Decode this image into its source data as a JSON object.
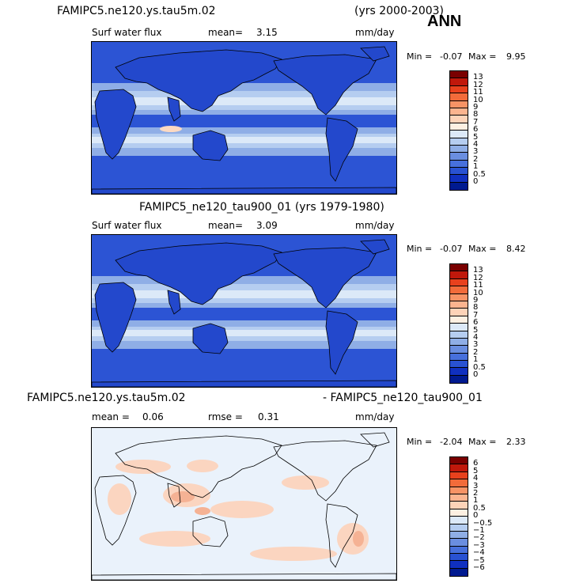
{
  "header": {
    "case1": "FAMIPC5.ne120.ys.tau5m.02",
    "years1": "(yrs 2000-2003)",
    "season": "ANN"
  },
  "panel1": {
    "var": "Surf water flux",
    "mean_label": "mean=",
    "mean": "3.15",
    "units": "mm/day",
    "min_label": "Min =",
    "min": "-0.07",
    "max_label": "Max =",
    "max": "9.95"
  },
  "panel2": {
    "title": "FAMIPC5_ne120_tau900_01 (yrs 1979-1980)",
    "var": "Surf water flux",
    "mean_label": "mean=",
    "mean": "3.09",
    "units": "mm/day",
    "min_label": "Min =",
    "min": "-0.07",
    "max_label": "Max =",
    "max": "8.42"
  },
  "panel3": {
    "case_a": "FAMIPC5.ne120.ys.tau5m.02",
    "case_b": "- FAMIPC5_ne120_tau900_01",
    "mean_label": "mean =",
    "mean": "0.06",
    "rmse_label": "rmse =",
    "rmse": "0.31",
    "units": "mm/day",
    "min_label": "Min =",
    "min": "-2.04",
    "max_label": "Max =",
    "max": "2.33"
  },
  "colorbar_abs": {
    "labels": [
      "13",
      "12",
      "11",
      "10",
      "9",
      "8",
      "7",
      "6",
      "5",
      "4",
      "3",
      "2",
      "1",
      "0.5",
      "0"
    ],
    "colors": [
      "#7a0000",
      "#c0180b",
      "#e8411d",
      "#f26b3a",
      "#f79365",
      "#fbb48f",
      "#fdd3b8",
      "#fdf0e2",
      "#dce9f8",
      "#b5cdf0",
      "#8faee6",
      "#6a8ee0",
      "#4770dc",
      "#2952d2",
      "#1030c0",
      "#001a90"
    ]
  },
  "colorbar_diff": {
    "labels": [
      "6",
      "5",
      "4",
      "3",
      "2",
      "1",
      "0.5",
      "0",
      "−0.5",
      "−1",
      "−2",
      "−3",
      "−4",
      "−5",
      "−6"
    ],
    "colors": [
      "#7a0000",
      "#c0180b",
      "#e8411d",
      "#f26b3a",
      "#f79365",
      "#fbb48f",
      "#fdd3b8",
      "#fdf0e2",
      "#dce9f8",
      "#b5cdf0",
      "#8faee6",
      "#6a8ee0",
      "#4770dc",
      "#2952d2",
      "#1030c0",
      "#001a90"
    ]
  },
  "map_colors": {
    "ocean_abs": "#2c54d4",
    "land_abs": "#2348cc",
    "band_light": "#dce9f8",
    "band_mid": "#b5cdf0",
    "band_pale": "#8faee6",
    "band_peach": "#fbd9c2",
    "diff_base": "#eaf2fb",
    "diff_warm": "#fbd5c0",
    "diff_hot": "#f5b294",
    "coast": "#000000"
  }
}
